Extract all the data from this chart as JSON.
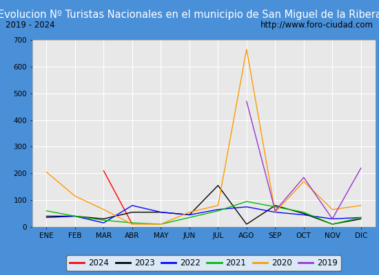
{
  "title": "Evolucion Nº Turistas Nacionales en el municipio de San Miguel de la Ribera",
  "subtitle_left": "2019 - 2024",
  "subtitle_right": "http://www.foro-ciudad.com",
  "months": [
    "ENE",
    "FEB",
    "MAR",
    "ABR",
    "MAY",
    "JUN",
    "JUL",
    "AGO",
    "SEP",
    "OCT",
    "NOV",
    "DIC"
  ],
  "series": {
    "2024": {
      "color": "#ff0000",
      "data": [
        null,
        null,
        210,
        10,
        null,
        null,
        null,
        null,
        null,
        null,
        null,
        null
      ]
    },
    "2023": {
      "color": "#000000",
      "data": [
        40,
        40,
        30,
        55,
        55,
        45,
        155,
        10,
        80,
        50,
        10,
        30
      ]
    },
    "2022": {
      "color": "#0000ff",
      "data": [
        35,
        40,
        15,
        80,
        55,
        45,
        65,
        75,
        55,
        45,
        30,
        35
      ]
    },
    "2021": {
      "color": "#00bb00",
      "data": [
        60,
        40,
        25,
        15,
        10,
        35,
        60,
        95,
        75,
        55,
        10,
        35
      ]
    },
    "2020": {
      "color": "#ff9900",
      "data": [
        205,
        115,
        65,
        10,
        10,
        55,
        80,
        665,
        55,
        170,
        65,
        80
      ]
    },
    "2019": {
      "color": "#9933cc",
      "data": [
        null,
        null,
        null,
        null,
        null,
        null,
        null,
        470,
        60,
        185,
        30,
        220
      ]
    }
  },
  "ylim": [
    0,
    700
  ],
  "yticks": [
    0,
    100,
    200,
    300,
    400,
    500,
    600,
    700
  ],
  "title_bg_color": "#4a90d9",
  "title_text_color": "#ffffff",
  "outer_bg_color": "#4a90d9",
  "inner_bg_color": "#e8e8e8",
  "plot_bg_color": "#e8e8e8",
  "grid_color": "#ffffff",
  "subtitle_bg": "#e0e0e0",
  "title_fontsize": 10.5,
  "subtitle_fontsize": 8.5,
  "axis_fontsize": 7.5,
  "legend_fontsize": 8.5
}
